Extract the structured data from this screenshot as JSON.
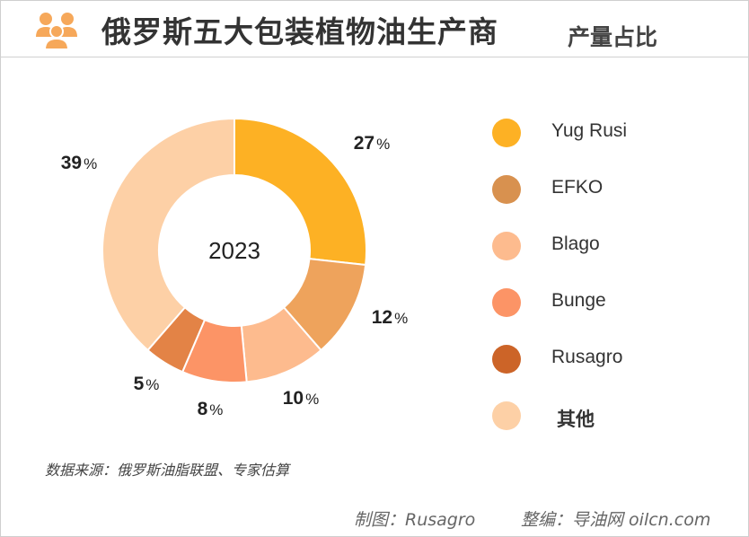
{
  "header": {
    "title": "俄罗斯五大包装植物油生产商",
    "subtitle": "产量占比"
  },
  "chart_data": {
    "type": "pie",
    "center_label": "2023",
    "categories": [
      "Yug Rusi",
      "EFKO",
      "Blago",
      "Bunge",
      "Rusagro",
      "其他"
    ],
    "values": [
      27,
      12,
      10,
      8,
      5,
      39
    ],
    "data_labels": [
      "27",
      "12",
      "10",
      "8",
      "5",
      "39"
    ],
    "unit_suffix": "%",
    "colors": [
      "#FDB124",
      "#EEA35C",
      "#FDBB8E",
      "#FC9466",
      "#E38346",
      "#FDD0A6"
    ],
    "legend_colors": [
      "#FDB124",
      "#D8914F",
      "#FDBB8E",
      "#FC9466",
      "#CC6428",
      "#FDD0A6"
    ],
    "legend_position": "right",
    "donut": true
  },
  "footer": {
    "source": "数据来源：俄罗斯油脂联盟、专家估算",
    "credit_left": "制图：Rusagro",
    "credit_right": "整编：导油网 oilcn.com"
  },
  "logo": {
    "icon": "people-group-icon",
    "color": "#F6A85A"
  }
}
